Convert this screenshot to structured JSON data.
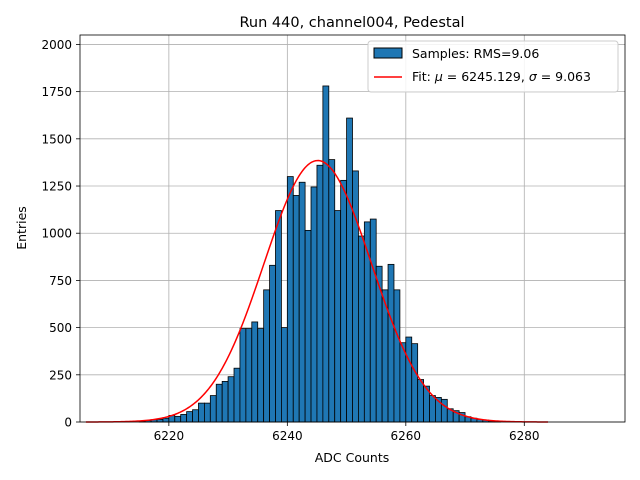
{
  "chart_data": {
    "type": "bar",
    "title": "Run 440, channel004, Pedestal",
    "xlabel": "ADC Counts",
    "ylabel": "Entries",
    "xlim": [
      6205,
      6297
    ],
    "ylim": [
      0,
      2050
    ],
    "xticks": [
      6220,
      6240,
      6260,
      6280
    ],
    "yticks": [
      0,
      250,
      500,
      750,
      1000,
      1250,
      1500,
      1750,
      2000
    ],
    "grid": true,
    "legend_position": "top-right",
    "bin_width": 1,
    "bins": [
      [
        6215,
        5
      ],
      [
        6216,
        8
      ],
      [
        6217,
        12
      ],
      [
        6218,
        14
      ],
      [
        6219,
        20
      ],
      [
        6220,
        35
      ],
      [
        6221,
        30
      ],
      [
        6222,
        40
      ],
      [
        6223,
        55
      ],
      [
        6224,
        65
      ],
      [
        6225,
        100
      ],
      [
        6226,
        100
      ],
      [
        6227,
        140
      ],
      [
        6228,
        200
      ],
      [
        6229,
        215
      ],
      [
        6230,
        240
      ],
      [
        6231,
        285
      ],
      [
        6232,
        495
      ],
      [
        6233,
        495
      ],
      [
        6234,
        530
      ],
      [
        6235,
        495
      ],
      [
        6236,
        700
      ],
      [
        6237,
        830
      ],
      [
        6238,
        1120
      ],
      [
        6239,
        500
      ],
      [
        6240,
        1300
      ],
      [
        6241,
        1200
      ],
      [
        6242,
        1270
      ],
      [
        6243,
        1015
      ],
      [
        6244,
        1245
      ],
      [
        6245,
        1360
      ],
      [
        6246,
        1780
      ],
      [
        6247,
        1390
      ],
      [
        6248,
        1120
      ],
      [
        6249,
        1280
      ],
      [
        6250,
        1610
      ],
      [
        6251,
        1330
      ],
      [
        6252,
        985
      ],
      [
        6253,
        1060
      ],
      [
        6254,
        1075
      ],
      [
        6255,
        825
      ],
      [
        6256,
        700
      ],
      [
        6257,
        835
      ],
      [
        6258,
        700
      ],
      [
        6259,
        420
      ],
      [
        6260,
        450
      ],
      [
        6261,
        415
      ],
      [
        6262,
        225
      ],
      [
        6263,
        190
      ],
      [
        6264,
        140
      ],
      [
        6265,
        130
      ],
      [
        6266,
        120
      ],
      [
        6267,
        70
      ],
      [
        6268,
        60
      ],
      [
        6269,
        50
      ],
      [
        6270,
        28
      ],
      [
        6271,
        20
      ],
      [
        6272,
        14
      ],
      [
        6273,
        10
      ],
      [
        6274,
        6
      ],
      [
        6275,
        4
      ]
    ],
    "fit": {
      "mu": 6245.129,
      "sigma": 9.063,
      "amplitude": 1385,
      "x_range": [
        6206,
        6284
      ]
    },
    "series": [
      {
        "name": "Samples: RMS=9.06",
        "kind": "histogram",
        "color": "#1f77b4",
        "edge_color": "#000000"
      },
      {
        "name": "Fit: μ = 6245.129, σ = 9.063",
        "kind": "line",
        "color": "#ff0000"
      }
    ],
    "legend": {
      "samples_label": "Samples: RMS=9.06",
      "fit_prefix": "Fit: ",
      "mu_symbol": "μ",
      "mu_value": " = 6245.129, ",
      "sigma_symbol": "σ",
      "sigma_value": " = 9.063"
    }
  }
}
